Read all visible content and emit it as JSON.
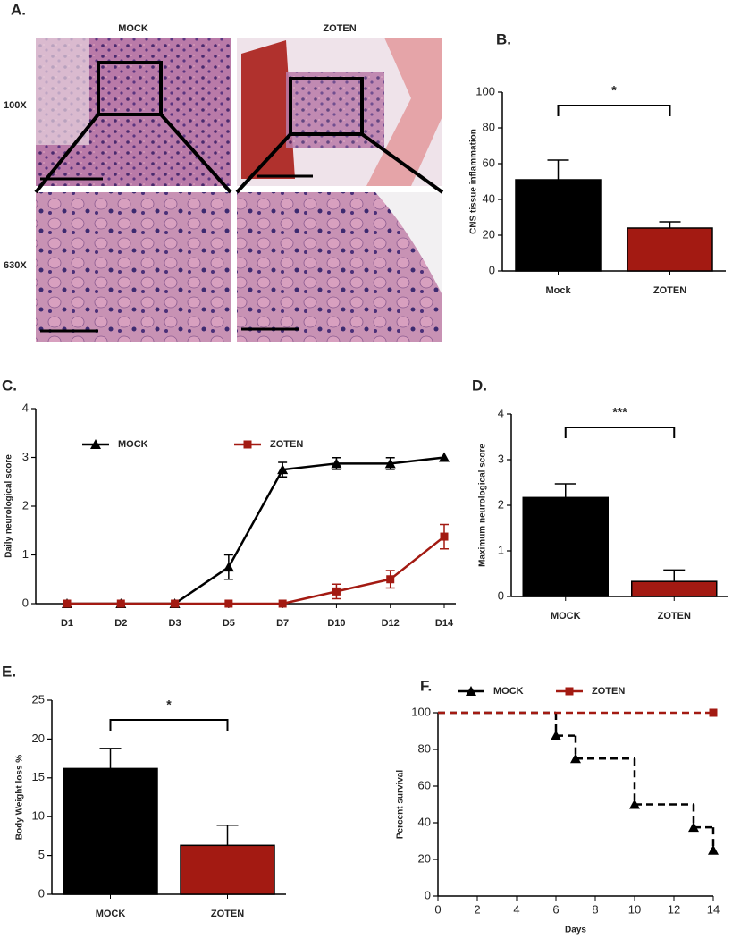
{
  "panel_a": {
    "label": "A.",
    "columns": [
      "MOCK",
      "ZOTEN"
    ],
    "rows": [
      "100X",
      "630X"
    ]
  },
  "chart_data": [
    {
      "type": "bar",
      "panel": "B.",
      "ylabel": "CNS tissue inflammation",
      "categories": [
        "Mock",
        "ZOTEN"
      ],
      "values": [
        51,
        24
      ],
      "errors": [
        11,
        3.5
      ],
      "colors": [
        "#000000",
        "#a31a12"
      ],
      "ylim": [
        0,
        100
      ],
      "yticks": [
        0,
        20,
        40,
        60,
        80,
        100
      ],
      "annotation": "*"
    },
    {
      "type": "line",
      "panel": "C.",
      "ylabel": "Daily neurological score",
      "categories": [
        "D1",
        "D2",
        "D3",
        "D5",
        "D7",
        "D10",
        "D12",
        "D14"
      ],
      "series": [
        {
          "name": "MOCK",
          "color": "#000000",
          "marker": "triangle",
          "values": [
            0,
            0,
            0,
            0.75,
            2.75,
            2.875,
            2.875,
            3
          ],
          "errors": [
            0,
            0,
            0,
            0.25,
            0.15,
            0.12,
            0.12,
            0
          ]
        },
        {
          "name": "ZOTEN",
          "color": "#a31a12",
          "marker": "square",
          "values": [
            0,
            0,
            0,
            0,
            0,
            0.25,
            0.5,
            1.375
          ],
          "errors": [
            0,
            0,
            0,
            0,
            0,
            0.15,
            0.18,
            0.25
          ]
        }
      ],
      "ylim": [
        0,
        4
      ],
      "yticks": [
        0,
        1,
        2,
        3,
        4
      ]
    },
    {
      "type": "bar",
      "panel": "D.",
      "ylabel": "Maximum neurological score",
      "categories": [
        "MOCK",
        "ZOTEN"
      ],
      "values": [
        2.17,
        0.33
      ],
      "errors": [
        0.3,
        0.25
      ],
      "colors": [
        "#000000",
        "#a31a12"
      ],
      "ylim": [
        0,
        4
      ],
      "yticks": [
        0,
        1,
        2,
        3,
        4
      ],
      "annotation": "***"
    },
    {
      "type": "bar",
      "panel": "E.",
      "ylabel": "Body Weight loss %",
      "categories": [
        "MOCK",
        "ZOTEN"
      ],
      "values": [
        16.2,
        6.3
      ],
      "errors": [
        2.6,
        2.6
      ],
      "colors": [
        "#000000",
        "#a31a12"
      ],
      "ylim": [
        0,
        25
      ],
      "yticks": [
        0,
        5,
        10,
        15,
        20,
        25
      ],
      "annotation": "*"
    },
    {
      "type": "step",
      "panel": "F.",
      "xlabel": "Days",
      "ylabel": "Percent survival",
      "series": [
        {
          "name": "MOCK",
          "color": "#000000",
          "marker": "triangle",
          "x": [
            0,
            6,
            7,
            10,
            13,
            14
          ],
          "values": [
            100,
            87.5,
            75,
            50,
            37.5,
            25
          ]
        },
        {
          "name": "ZOTEN",
          "color": "#a31a12",
          "marker": "square",
          "x": [
            0,
            14
          ],
          "values": [
            100,
            100
          ]
        }
      ],
      "xlim": [
        0,
        14
      ],
      "xticks": [
        0,
        2,
        4,
        6,
        8,
        10,
        12,
        14
      ],
      "ylim": [
        0,
        100
      ],
      "yticks": [
        0,
        20,
        40,
        60,
        80,
        100
      ]
    }
  ]
}
